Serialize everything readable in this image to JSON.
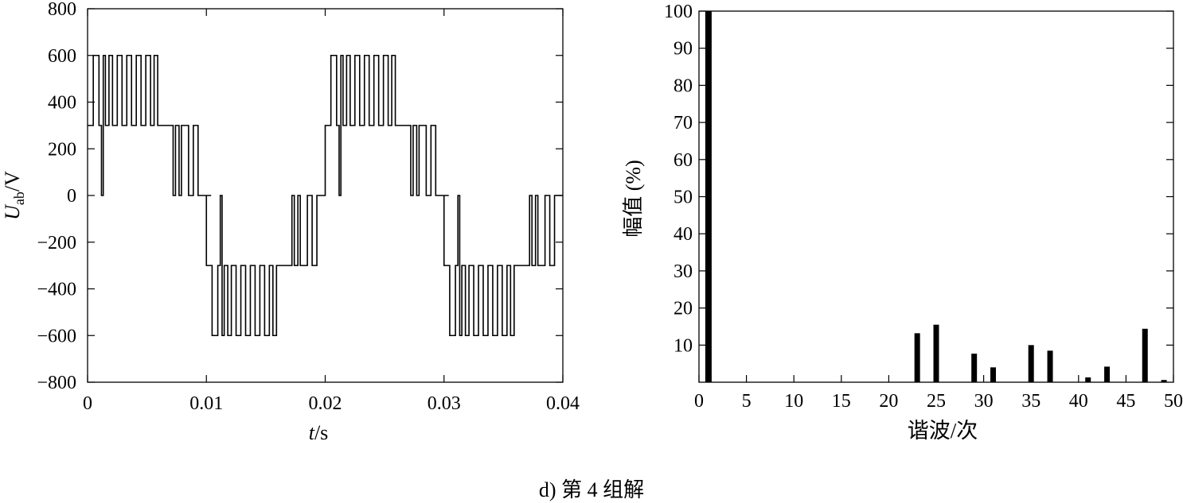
{
  "caption": "d) 第 4 组解",
  "chart_data": [
    {
      "type": "line",
      "ylabel_main": "U",
      "ylabel_sub": "ab",
      "ylabel_unit": "/V",
      "xlabel_main": "t",
      "xlabel_unit": "/s",
      "xlim": [
        0,
        0.04
      ],
      "ylim": [
        -800,
        800
      ],
      "x_ticks": [
        "0",
        "0.01",
        "0.02",
        "0.03",
        "0.04"
      ],
      "y_ticks": [
        "800",
        "600",
        "400",
        "200",
        "0",
        "−200",
        "−400",
        "−600",
        "−800"
      ],
      "series": [
        {
          "description": "staircase PWM line voltage, period 0.02 s",
          "x": [
            0,
            0.00048,
            0.00048,
            0.00096,
            0.00096,
            0.00117,
            0.00117,
            0.00132,
            0.00132,
            0.0015,
            0.0015,
            0.0018,
            0.0018,
            0.0021,
            0.0021,
            0.0025,
            0.0025,
            0.0029,
            0.0029,
            0.0033,
            0.0033,
            0.0037,
            0.0037,
            0.0041,
            0.0041,
            0.0045,
            0.0045,
            0.0049,
            0.0049,
            0.0053,
            0.0053,
            0.0056,
            0.0056,
            0.0059,
            0.0059,
            0.0072,
            0.0072,
            0.0074,
            0.0074,
            0.0077,
            0.0077,
            0.0079,
            0.0079,
            0.0085,
            0.0085,
            0.0089,
            0.0089,
            0.0093,
            0.0093,
            0.0096,
            0.0096,
            0.0104,
            0.0104,
            0.01,
            0.01,
            0.01048,
            0.01048,
            0.01096,
            0.01096,
            0.01117,
            0.01117,
            0.01132,
            0.01132,
            0.0115,
            0.0115,
            0.0118,
            0.0118,
            0.0121,
            0.0121,
            0.0125,
            0.0125,
            0.0129,
            0.0129,
            0.0133,
            0.0133,
            0.0137,
            0.0137,
            0.0141,
            0.0141,
            0.0145,
            0.0145,
            0.0149,
            0.0149,
            0.0153,
            0.0153,
            0.0156,
            0.0156,
            0.0159,
            0.0159,
            0.0172,
            0.0172,
            0.0174,
            0.0174,
            0.0177,
            0.0177,
            0.0179,
            0.0179,
            0.0185,
            0.0185,
            0.0189,
            0.0189,
            0.0193,
            0.0193,
            0.0196,
            0.0196,
            0.02
          ],
          "y": [
            300,
            300,
            600,
            600,
            300,
            300,
            0,
            0,
            600,
            600,
            300,
            300,
            600,
            600,
            300,
            300,
            600,
            600,
            300,
            300,
            600,
            600,
            300,
            300,
            600,
            600,
            300,
            300,
            600,
            600,
            300,
            300,
            600,
            600,
            300,
            300,
            0,
            0,
            300,
            300,
            0,
            0,
            300,
            300,
            0,
            0,
            300,
            300,
            0,
            0,
            0,
            0,
            0,
            0,
            -300,
            -300,
            -600,
            -600,
            -300,
            -300,
            0,
            0,
            -600,
            -600,
            -300,
            -300,
            -600,
            -600,
            -300,
            -300,
            -600,
            -600,
            -300,
            -300,
            -600,
            -600,
            -300,
            -300,
            -600,
            -600,
            -300,
            -300,
            -600,
            -600,
            -300,
            -300,
            -600,
            -600,
            -300,
            -300,
            0,
            0,
            -300,
            -300,
            0,
            0,
            -300,
            -300,
            0,
            0,
            -300,
            -300,
            0,
            0,
            0,
            0
          ]
        }
      ]
    },
    {
      "type": "bar",
      "ylabel": "幅值 (%)",
      "xlabel": "谐波/次",
      "xlim": [
        0,
        50
      ],
      "ylim": [
        0,
        100
      ],
      "x_ticks": [
        "0",
        "5",
        "10",
        "15",
        "20",
        "25",
        "30",
        "35",
        "40",
        "45",
        "50"
      ],
      "y_ticks": [
        "100",
        "90",
        "80",
        "70",
        "60",
        "50",
        "40",
        "30",
        "20",
        "10"
      ],
      "x": [
        1,
        23,
        25,
        29,
        31,
        35,
        37,
        41,
        43,
        47,
        49
      ],
      "values": [
        100,
        13.2,
        15.5,
        7.7,
        4.0,
        10.0,
        8.5,
        1.3,
        4.2,
        14.4,
        0.6
      ]
    }
  ]
}
